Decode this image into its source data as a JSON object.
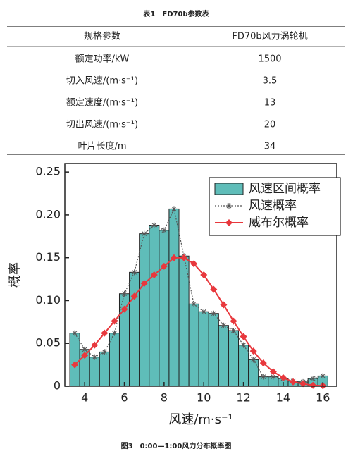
{
  "title": "表1　FD70b参数表",
  "table": {
    "header": [
      "规格参数",
      "FD70b风力涡轮机"
    ],
    "rows": [
      [
        "额定功率/kW",
        "1500"
      ],
      [
        "切入风速/(m·s⁻¹)",
        "3.5"
      ],
      [
        "额定速度/(m·s⁻¹)",
        "13"
      ],
      [
        "切出风速/(m·s⁻¹)",
        "20"
      ],
      [
        "叶片长度/m",
        "34"
      ]
    ]
  },
  "chart_data": {
    "type": "bar",
    "xlabel": "风速/m·s⁻¹",
    "ylabel": "概率",
    "x": [
      3.5,
      4,
      4.5,
      5,
      5.5,
      6,
      6.5,
      7,
      7.5,
      8,
      8.5,
      9,
      9.5,
      10,
      10.5,
      11,
      11.5,
      12,
      12.5,
      13,
      13.5,
      14,
      14.5,
      15,
      15.5,
      16
    ],
    "bar_width": 0.5,
    "series": [
      {
        "name": "风速区间概率",
        "type": "bar",
        "color": "#5fbdb9",
        "values": [
          0.062,
          0.043,
          0.034,
          0.04,
          0.062,
          0.108,
          0.133,
          0.178,
          0.188,
          0.182,
          0.207,
          0.152,
          0.096,
          0.087,
          0.085,
          0.071,
          0.065,
          0.048,
          0.031,
          0.011,
          0.011,
          0.009,
          0.006,
          0.005,
          0.009,
          0.012
        ]
      },
      {
        "name": "风速概率",
        "type": "line",
        "color": "#555555",
        "marker": "asterisk",
        "dash": true,
        "values": [
          0.062,
          0.043,
          0.034,
          0.04,
          0.062,
          0.108,
          0.133,
          0.178,
          0.188,
          0.182,
          0.207,
          0.152,
          0.096,
          0.087,
          0.085,
          0.071,
          0.065,
          0.048,
          0.031,
          0.011,
          0.011,
          0.009,
          0.006,
          0.005,
          0.009,
          0.012
        ]
      },
      {
        "name": "威布尔概率",
        "type": "line",
        "color": "#e8383d",
        "marker": "diamond",
        "values": [
          0.025,
          0.036,
          0.048,
          0.062,
          0.076,
          0.09,
          0.105,
          0.12,
          0.13,
          0.14,
          0.15,
          0.15,
          0.143,
          0.13,
          0.113,
          0.095,
          0.076,
          0.058,
          0.041,
          0.027,
          0.017,
          0.01,
          0.005,
          0.003,
          0.001,
          0.0005
        ]
      }
    ],
    "xlim": [
      3,
      16.7
    ],
    "xticks": [
      4,
      6,
      8,
      10,
      12,
      14,
      16
    ],
    "ylim": [
      0,
      0.26
    ],
    "yticks": [
      0,
      0.05,
      {
        "value": 0.1,
        "label": "0.10"
      },
      0.15,
      {
        "value": 0.2,
        "label": "0.20"
      },
      0.25
    ],
    "legend": "upper right"
  },
  "caption": "图3　0:00—1:00风力分布概率图"
}
